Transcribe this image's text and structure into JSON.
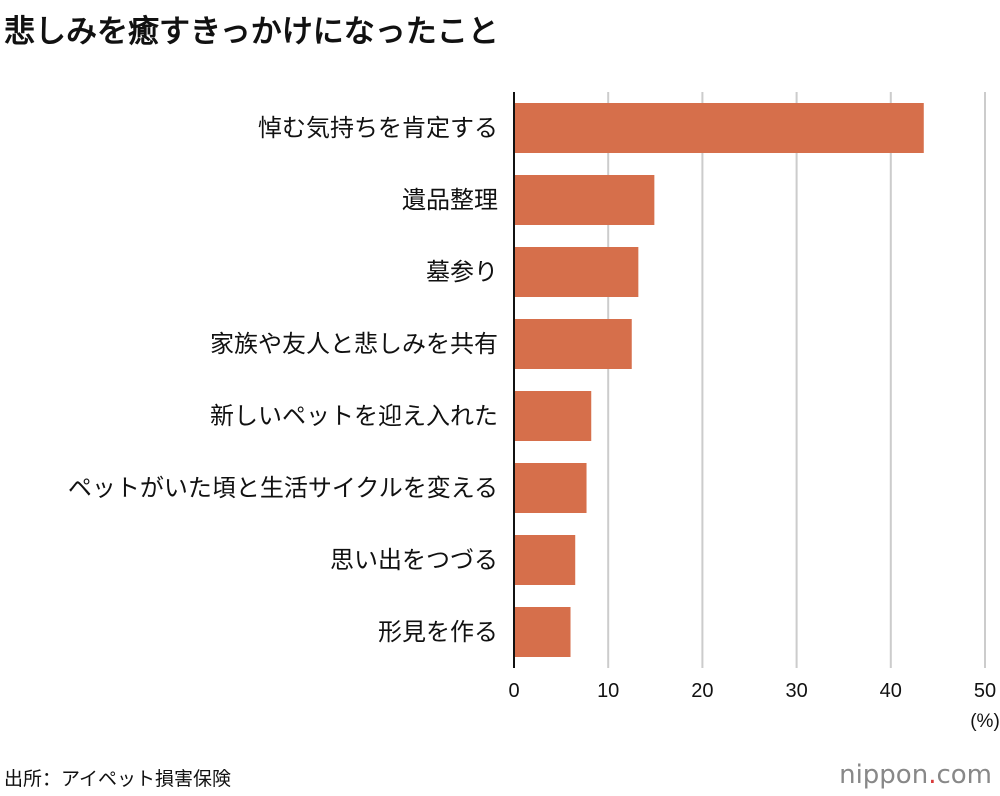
{
  "title": "悲しみを癒すきっかけになったこと",
  "source": "出所：アイペット損害保険",
  "logo": {
    "text": "nippon.com",
    "brand": "nippon",
    "dot": ".",
    "tld": "com"
  },
  "colors": {
    "bar": "#d66f4b",
    "grid": "#cccccc",
    "axis": "#111111"
  },
  "chart_data": {
    "type": "bar",
    "orientation": "horizontal",
    "title": "悲しみを癒すきっかけになったこと",
    "categories": [
      "悼む気持ちを肯定する",
      "遺品整理",
      "墓参り",
      "家族や友人と悲しみを共有",
      "新しいペットを迎え入れた",
      "ペットがいた頃と生活サイクルを変える",
      "思い出をつづる",
      "形見を作る"
    ],
    "values": [
      43.5,
      14.9,
      13.2,
      12.5,
      8.2,
      7.7,
      6.5,
      6.0
    ],
    "xlabel": "(%)",
    "ylabel": "",
    "xlim": [
      0,
      50
    ],
    "xticks": [
      0,
      10,
      20,
      30,
      40,
      50
    ],
    "grid": true
  }
}
